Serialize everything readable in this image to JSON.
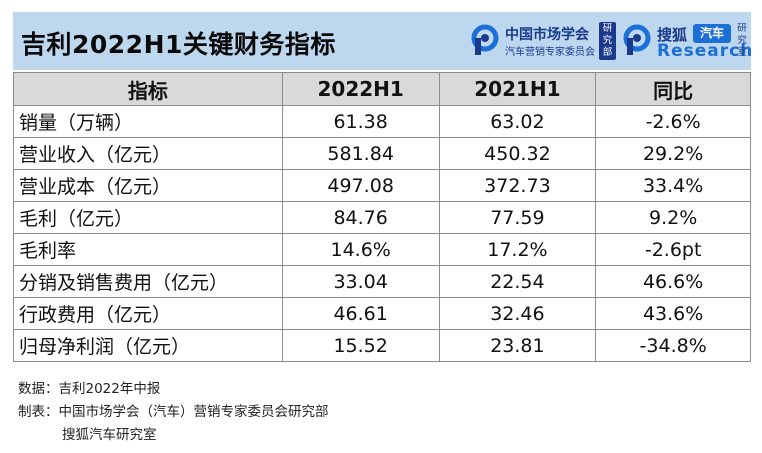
{
  "title": "吉利2022H1关键财务指标",
  "logos": {
    "cmr": {
      "name": "中国市场学会",
      "sub": "汽车营销专家委员会",
      "vertical": "研究部"
    },
    "sohu": {
      "name": "搜狐",
      "tag": "汽车",
      "en": "Research",
      "vertical": "研究室"
    }
  },
  "table": {
    "headers": [
      "指标",
      "2022H1",
      "2021H1",
      "同比"
    ],
    "rows": [
      {
        "name": "销量（万辆）",
        "h2022": "61.38",
        "h2021": "63.02",
        "yoy": "-2.6%"
      },
      {
        "name": "营业收入（亿元）",
        "h2022": "581.84",
        "h2021": "450.32",
        "yoy": "29.2%"
      },
      {
        "name": "营业成本（亿元）",
        "h2022": "497.08",
        "h2021": "372.73",
        "yoy": "33.4%"
      },
      {
        "name": "毛利（亿元）",
        "h2022": "84.76",
        "h2021": "77.59",
        "yoy": "9.2%"
      },
      {
        "name": "毛利率",
        "h2022": "14.6%",
        "h2021": "17.2%",
        "yoy": "-2.6pt"
      },
      {
        "name": "分销及销售费用（亿元）",
        "h2022": "33.04",
        "h2021": "22.54",
        "yoy": "46.6%"
      },
      {
        "name": "行政费用（亿元）",
        "h2022": "46.61",
        "h2021": "32.46",
        "yoy": "43.6%"
      },
      {
        "name": "归母净利润（亿元）",
        "h2022": "15.52",
        "h2021": "23.81",
        "yoy": "-34.8%"
      }
    ]
  },
  "footer": {
    "source": "数据：吉利2022年中报",
    "maker_line1": "制表：中国市场学会（汽车）营销专家委员会研究部",
    "maker_line2": "搜狐汽车研究室"
  },
  "colors": {
    "header_bg": "#bdd7ee",
    "table_header_bg": "#d9d9d9",
    "brand_dark": "#1b3a8c",
    "brand_blue": "#1b6fd6"
  }
}
